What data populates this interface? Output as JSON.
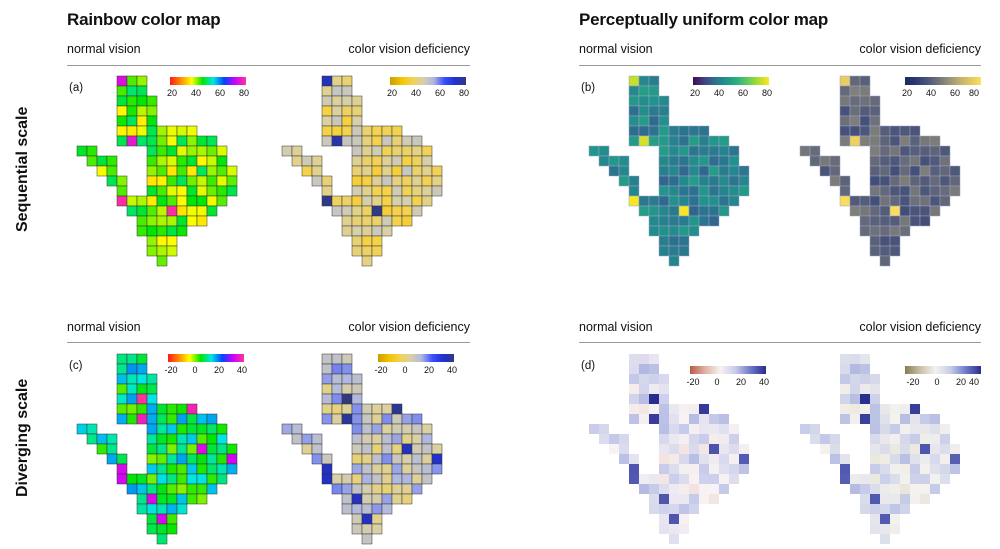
{
  "columns": [
    {
      "title": "Rainbow color map"
    },
    {
      "title": "Perceptually uniform color map"
    }
  ],
  "rows": [
    {
      "title": "Sequential scale"
    },
    {
      "title": "Diverging scale"
    }
  ],
  "vision": {
    "normal": "normal vision",
    "cvd": "color vision deficiency"
  },
  "panels": [
    {
      "label": "(a)"
    },
    {
      "label": "(b)"
    },
    {
      "label": "(c)"
    },
    {
      "label": "(d)"
    }
  ],
  "scales": {
    "sequential": {
      "ticks": [
        "20",
        "40",
        "60",
        "80"
      ]
    },
    "diverging": {
      "ticks": [
        "-20",
        "0",
        "20",
        "40"
      ]
    }
  },
  "colormaps": {
    "rainbow": [
      "#ff1a1a",
      "#ff8c00",
      "#ffff00",
      "#00e600",
      "#00e6e6",
      "#0044ff",
      "#cc00ff",
      "#ff3399"
    ],
    "rainbow_cvd": [
      "#c8a000",
      "#f2c200",
      "#f5d24a",
      "#d8d0a8",
      "#b0b8e0",
      "#3a50ff",
      "#2030d0",
      "#303a80"
    ],
    "viridis": [
      "#3b0f51",
      "#433e85",
      "#2c728e",
      "#21918c",
      "#28ae80",
      "#5ec962",
      "#addc30",
      "#fde725"
    ],
    "viridis_cvd": [
      "#1a2a5e",
      "#2a3a78",
      "#4a5478",
      "#6e7078",
      "#94907a",
      "#bfae6c",
      "#e0c560",
      "#fde060"
    ],
    "diverging": [
      "#b85c48",
      "#e2b2a4",
      "#f7f2f3",
      "#c7cbea",
      "#6c76c6",
      "#2a2b8f"
    ],
    "diverging_cvd": [
      "#8a7a52",
      "#c9c1a5",
      "#f4f2ee",
      "#c6cce8",
      "#6f7ac8",
      "#2a3090"
    ]
  }
}
